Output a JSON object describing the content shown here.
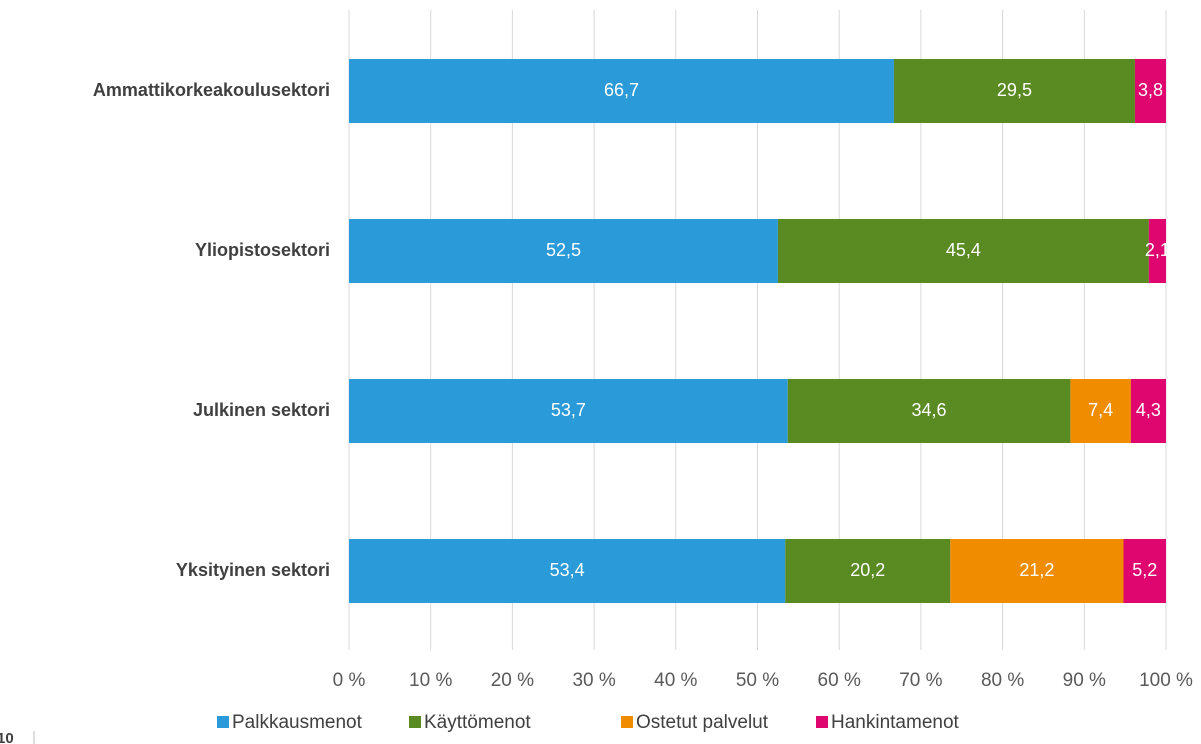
{
  "chart_data": {
    "type": "stacked_hbar",
    "categories": [
      "Ammattikorkeakoulusektori",
      "Yliopistosektori",
      "Julkinen sektori",
      "Yksityinen sektori"
    ],
    "series": [
      {
        "name": "Palkkausmenot",
        "color": "#2b9ad8",
        "values": [
          66.7,
          52.5,
          53.7,
          53.4
        ],
        "value_labels": [
          "66,7",
          "52,5",
          "53,7",
          "53,4"
        ]
      },
      {
        "name": "Käyttömenot",
        "color": "#5a8a22",
        "values": [
          29.5,
          45.4,
          34.6,
          20.2
        ],
        "value_labels": [
          "29,5",
          "45,4",
          "34,6",
          "20,2"
        ]
      },
      {
        "name": "Ostetut palvelut",
        "color": "#f08c00",
        "values": [
          0,
          0,
          7.4,
          21.2
        ],
        "value_labels": [
          null,
          null,
          "7,4",
          "21,2"
        ]
      },
      {
        "name": "Hankintamenot",
        "color": "#e0066f",
        "values": [
          3.8,
          2.1,
          4.3,
          5.2
        ],
        "value_labels": [
          "3,8",
          "2,1",
          "4,3",
          "5,2"
        ]
      }
    ],
    "xlim": [
      0,
      100
    ],
    "xticks": [
      {
        "value": 0,
        "label": "0 %"
      },
      {
        "value": 10,
        "label": "10 %"
      },
      {
        "value": 20,
        "label": "20 %"
      },
      {
        "value": 30,
        "label": "30 %"
      },
      {
        "value": 40,
        "label": "40 %"
      },
      {
        "value": 50,
        "label": "50 %"
      },
      {
        "value": 60,
        "label": "60 %"
      },
      {
        "value": 70,
        "label": "70 %"
      },
      {
        "value": 80,
        "label": "80 %"
      },
      {
        "value": 90,
        "label": "90 %"
      },
      {
        "value": 100,
        "label": "100 %"
      }
    ],
    "grid": true,
    "legend": "bottom"
  },
  "page_number": "10"
}
